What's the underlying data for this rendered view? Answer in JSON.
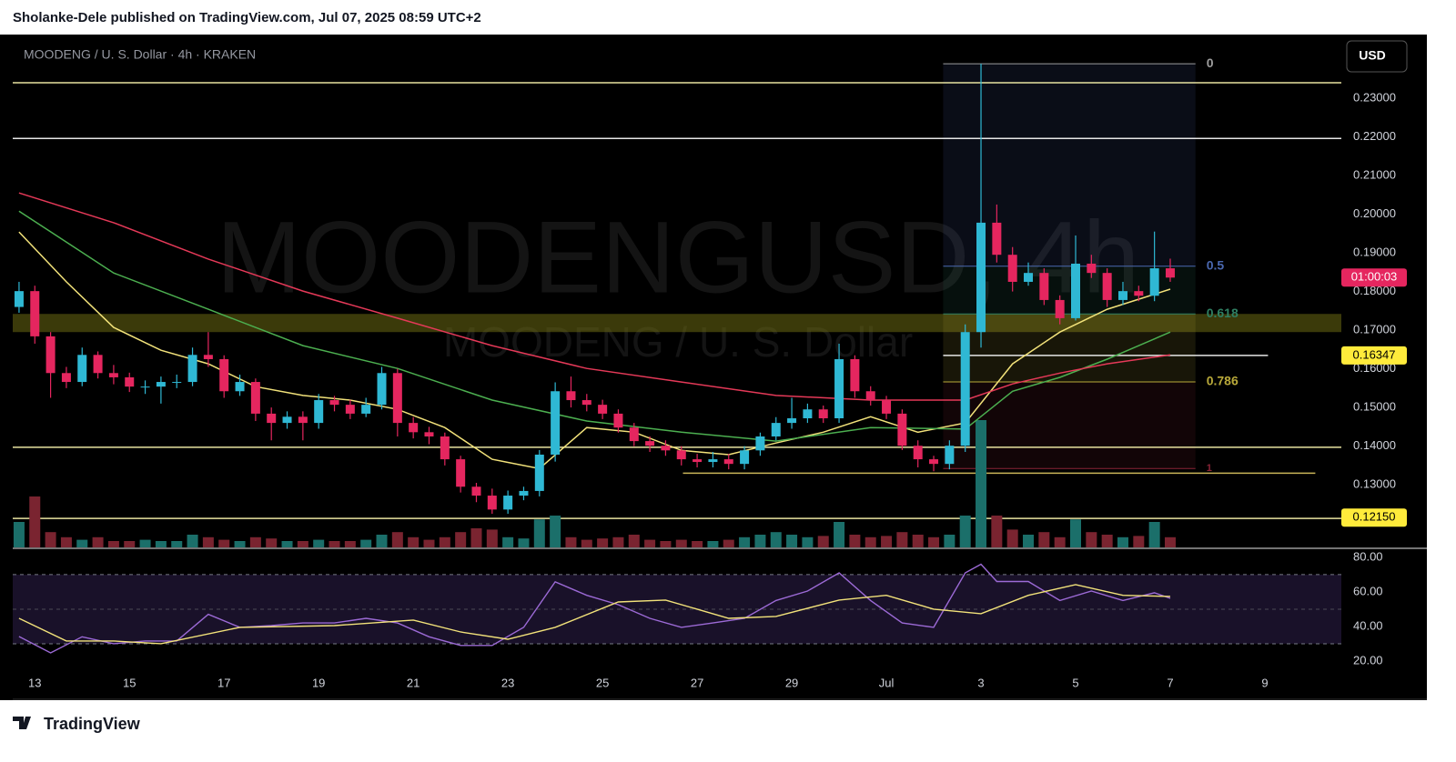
{
  "header": "Sholanke-Dele published on TradingView.com, Jul 07, 2025 08:59 UTC+2",
  "footer": "TradingView",
  "chart_data": {
    "type": "candlestick",
    "title": "MOODENG / U. S. Dollar · 4h · KRAKEN",
    "watermark": "MOODENGUSD, 4h",
    "watermark_sub": "MOODENG / U. S. Dollar",
    "currency": "USD",
    "countdown": "01:00:03",
    "up_color": "#2fb8d4",
    "down_color": "#e5265f",
    "open": [
      0.176,
      0.1801,
      0.1684,
      0.1589,
      0.1566,
      0.1636,
      0.1589,
      0.1578,
      0.1554,
      0.1554,
      0.1566,
      0.1566,
      0.1636,
      0.1625,
      0.1542,
      0.1566,
      0.1484,
      0.146,
      0.1476,
      0.146,
      0.1519,
      0.1507,
      0.1484,
      0.1507,
      0.1589,
      0.146,
      0.1436,
      0.1425,
      0.1366,
      0.1295,
      0.1272,
      0.1236,
      0.1272,
      0.1284,
      0.1378,
      0.1542,
      0.1519,
      0.1507,
      0.1484,
      0.1448,
      0.1413,
      0.1401,
      0.1389,
      0.1366,
      0.1359,
      0.1366,
      0.1354,
      0.1389,
      0.1425,
      0.146,
      0.1472,
      0.1495,
      0.1472,
      0.1625,
      0.1542,
      0.1519,
      0.1484,
      0.1401,
      0.1366,
      0.1354,
      0.1401,
      0.1695,
      0.1978,
      0.1895,
      0.1825,
      0.1848,
      0.1778,
      0.1731,
      0.1872,
      0.1848,
      0.1778,
      0.1801,
      0.1789,
      0.186
    ],
    "high": [
      0.1825,
      0.1815,
      0.1695,
      0.1605,
      0.1655,
      0.1645,
      0.161,
      0.159,
      0.157,
      0.158,
      0.1585,
      0.1655,
      0.1695,
      0.1635,
      0.1585,
      0.1575,
      0.15,
      0.149,
      0.149,
      0.1535,
      0.153,
      0.152,
      0.1525,
      0.1605,
      0.16,
      0.1475,
      0.145,
      0.1435,
      0.1375,
      0.1305,
      0.129,
      0.1285,
      0.1295,
      0.139,
      0.1565,
      0.158,
      0.1535,
      0.152,
      0.1495,
      0.146,
      0.1425,
      0.1415,
      0.14,
      0.138,
      0.1385,
      0.138,
      0.14,
      0.1435,
      0.1475,
      0.1525,
      0.151,
      0.1505,
      0.1665,
      0.1635,
      0.1555,
      0.153,
      0.1495,
      0.1415,
      0.1375,
      0.1415,
      0.1715,
      0.2389,
      0.2025,
      0.1915,
      0.1875,
      0.186,
      0.179,
      0.1945,
      0.1895,
      0.186,
      0.1825,
      0.1815,
      0.1955,
      0.1885
    ],
    "low": [
      0.1745,
      0.1665,
      0.1525,
      0.155,
      0.1555,
      0.1575,
      0.156,
      0.154,
      0.1535,
      0.151,
      0.155,
      0.1555,
      0.1605,
      0.1525,
      0.153,
      0.1465,
      0.1415,
      0.1445,
      0.1415,
      0.1445,
      0.149,
      0.147,
      0.1475,
      0.1495,
      0.1425,
      0.142,
      0.1405,
      0.135,
      0.128,
      0.1255,
      0.1225,
      0.1225,
      0.126,
      0.127,
      0.136,
      0.15,
      0.149,
      0.147,
      0.1435,
      0.14,
      0.1385,
      0.1375,
      0.135,
      0.1345,
      0.1345,
      0.134,
      0.134,
      0.1375,
      0.1415,
      0.1445,
      0.146,
      0.146,
      0.146,
      0.1525,
      0.1505,
      0.147,
      0.139,
      0.1345,
      0.1335,
      0.134,
      0.1385,
      0.1655,
      0.1875,
      0.18,
      0.1815,
      0.1765,
      0.1715,
      0.1725,
      0.1835,
      0.176,
      0.1765,
      0.1775,
      0.1775,
      0.1825
    ],
    "close": [
      0.1801,
      0.1684,
      0.1589,
      0.1566,
      0.1636,
      0.1589,
      0.1578,
      0.1554,
      0.1554,
      0.1566,
      0.1566,
      0.1636,
      0.1625,
      0.1542,
      0.1566,
      0.1484,
      0.146,
      0.1476,
      0.146,
      0.1519,
      0.1507,
      0.1484,
      0.1507,
      0.1589,
      0.146,
      0.1436,
      0.1425,
      0.1366,
      0.1295,
      0.1272,
      0.1236,
      0.1272,
      0.1284,
      0.1378,
      0.1542,
      0.1519,
      0.1507,
      0.1484,
      0.1448,
      0.1413,
      0.1401,
      0.1389,
      0.1366,
      0.1359,
      0.1366,
      0.1354,
      0.1389,
      0.1425,
      0.146,
      0.1472,
      0.1495,
      0.1472,
      0.1625,
      0.1542,
      0.1519,
      0.1484,
      0.1401,
      0.1366,
      0.1354,
      0.1401,
      0.1695,
      0.1978,
      0.1895,
      0.1825,
      0.1848,
      0.1778,
      0.1731,
      0.1872,
      0.1848,
      0.1778,
      0.1801,
      0.1789,
      0.186,
      0.1836
    ],
    "volume": [
      20,
      40,
      12,
      8,
      6,
      8,
      5,
      5,
      6,
      5,
      5,
      10,
      8,
      6,
      5,
      8,
      7,
      5,
      5,
      6,
      5,
      5,
      6,
      10,
      12,
      8,
      6,
      8,
      12,
      15,
      14,
      8,
      7,
      22,
      25,
      8,
      6,
      7,
      8,
      10,
      6,
      5,
      6,
      5,
      5,
      6,
      8,
      10,
      12,
      10,
      8,
      9,
      20,
      10,
      8,
      9,
      12,
      10,
      8,
      10,
      25,
      100,
      25,
      14,
      10,
      12,
      8,
      22,
      12,
      10,
      8,
      9,
      20,
      8
    ],
    "xlim": [
      -0.4,
      83.85
    ],
    "xticks": [
      {
        "value": 1,
        "label": "13"
      },
      {
        "value": 7,
        "label": "15"
      },
      {
        "value": 13,
        "label": "17"
      },
      {
        "value": 19,
        "label": "19"
      },
      {
        "value": 25,
        "label": "21"
      },
      {
        "value": 31,
        "label": "23"
      },
      {
        "value": 37,
        "label": "25"
      },
      {
        "value": 43,
        "label": "27"
      },
      {
        "value": 49,
        "label": "29"
      },
      {
        "value": 55,
        "label": "Jul"
      },
      {
        "value": 61,
        "label": "3"
      },
      {
        "value": 67,
        "label": "5"
      },
      {
        "value": 73,
        "label": "7"
      },
      {
        "value": 79,
        "label": "9"
      }
    ],
    "ylim": [
      0.1138,
      0.246
    ],
    "yticks": [
      {
        "value": 0.13,
        "label": "0.13000"
      },
      {
        "value": 0.14,
        "label": "0.14000"
      },
      {
        "value": 0.15,
        "label": "0.15000"
      },
      {
        "value": 0.16,
        "label": "0.16000"
      },
      {
        "value": 0.17,
        "label": "0.17000"
      },
      {
        "value": 0.18,
        "label": "0.18000"
      },
      {
        "value": 0.19,
        "label": "0.19000"
      },
      {
        "value": 0.2,
        "label": "0.20000"
      },
      {
        "value": 0.21,
        "label": "0.21000"
      },
      {
        "value": 0.22,
        "label": "0.22000"
      },
      {
        "value": 0.23,
        "label": "0.23000"
      }
    ],
    "lines": [
      {
        "color": "#f2e27a",
        "x": [
          0,
          3,
          6,
          9,
          12,
          15,
          18,
          21,
          24,
          27,
          30,
          33,
          36,
          39,
          42,
          45,
          48,
          51,
          54,
          57,
          60,
          63,
          66,
          69,
          73
        ],
        "values": [
          0.1954,
          0.1825,
          0.1707,
          0.1648,
          0.1613,
          0.1554,
          0.1531,
          0.1519,
          0.1495,
          0.1448,
          0.1366,
          0.1342,
          0.1448,
          0.1436,
          0.1389,
          0.1378,
          0.1408,
          0.1436,
          0.1476,
          0.1436,
          0.146,
          0.1613,
          0.1695,
          0.1754,
          0.1806
        ]
      },
      {
        "color": "#4caf50",
        "x": [
          0,
          6,
          12,
          18,
          24,
          30,
          36,
          42,
          48,
          54,
          60,
          63,
          66,
          69,
          73
        ],
        "values": [
          0.2008,
          0.1848,
          0.1754,
          0.166,
          0.1601,
          0.1519,
          0.1465,
          0.1436,
          0.1413,
          0.1448,
          0.1444,
          0.1542,
          0.1578,
          0.1625,
          0.1695
        ]
      },
      {
        "color": "#e53958",
        "x": [
          0,
          6,
          12,
          18,
          24,
          30,
          36,
          42,
          48,
          54,
          60,
          63,
          66,
          69,
          73
        ],
        "values": [
          0.2055,
          0.1978,
          0.1884,
          0.1801,
          0.1731,
          0.166,
          0.1601,
          0.1566,
          0.1531,
          0.1519,
          0.1519,
          0.1561,
          0.1589,
          0.1613,
          0.1636
        ]
      }
    ],
    "hlines": [
      {
        "value": 0.234,
        "color": "#e8e3a0"
      },
      {
        "value": 0.2196,
        "color": "#e6e6e6"
      },
      {
        "value": 0.1397,
        "color": "#e8e3a0"
      },
      {
        "value": 0.1213,
        "color": "#e8e3a0"
      },
      {
        "value": 0.16347,
        "color": "#e6e6e6",
        "x": [
          58.6,
          79.2
        ]
      },
      {
        "value": 0.133,
        "color": "#c9b458",
        "x": [
          42.1,
          82.2
        ]
      }
    ],
    "zone": [
      0.1695,
      0.1742
    ],
    "zone_color": "#6b6a12",
    "price_labels": [
      {
        "value": 0.16347,
        "color": "#ffeb3b"
      },
      {
        "value": 0.1215,
        "label": "0.12150",
        "color": "#ffeb3b"
      }
    ],
    "fib": {
      "high": 0.2389,
      "low": 0.1342,
      "x": [
        58.6,
        74.6
      ],
      "levels": [
        {
          "value": 0,
          "color": "#9e9e9e"
        },
        {
          "value": 0.5,
          "color": "#4a68b0"
        },
        {
          "value": 0.618,
          "color": "#2f7f62"
        },
        {
          "value": 0.786,
          "color": "#b9a93a"
        },
        {
          "value": 1,
          "color": "#8c2437"
        }
      ]
    },
    "rsi": {
      "ylim": [
        -1.6,
        84.7
      ],
      "yticks": [
        {
          "value": 20,
          "label": "20.00"
        },
        {
          "value": 40,
          "label": "40.00"
        },
        {
          "value": 60,
          "label": "60.00"
        },
        {
          "value": 80,
          "label": "80.00"
        }
      ],
      "bands": [
        30,
        70
      ],
      "mid": 50,
      "lines": [
        {
          "color": "#9c6ad6",
          "x": [
            0,
            2,
            4,
            6,
            8,
            10,
            12,
            14,
            16,
            18,
            20,
            22,
            24,
            26,
            28,
            30,
            32,
            34,
            36,
            38,
            40,
            42,
            44,
            46,
            48,
            50,
            52,
            54,
            56,
            58,
            60,
            61,
            62,
            64,
            66,
            68,
            70,
            72,
            73
          ],
          "values": [
            34.2,
            24.7,
            34,
            30,
            31.6,
            31.6,
            47,
            39.5,
            40.5,
            42,
            42,
            44.7,
            42,
            34,
            29,
            29,
            39.5,
            65.8,
            58,
            52.6,
            44.7,
            39.5,
            42,
            44.7,
            55,
            60.5,
            71,
            55,
            42,
            39.5,
            71,
            76,
            66,
            66,
            55,
            60.5,
            55,
            59.5,
            56.3
          ]
        },
        {
          "color": "#f2e27a",
          "x": [
            0,
            3,
            6,
            9,
            14,
            20,
            25,
            28,
            31,
            34,
            38,
            41,
            45,
            48,
            52,
            55,
            58,
            61,
            64,
            67,
            70,
            73
          ],
          "values": [
            44.7,
            31.6,
            31.6,
            30,
            39.5,
            40.5,
            43.7,
            36.8,
            32.6,
            39.5,
            54.2,
            55.3,
            44.7,
            45.8,
            55.3,
            58,
            50,
            47.4,
            58,
            64.2,
            58,
            57.4
          ]
        }
      ]
    }
  }
}
